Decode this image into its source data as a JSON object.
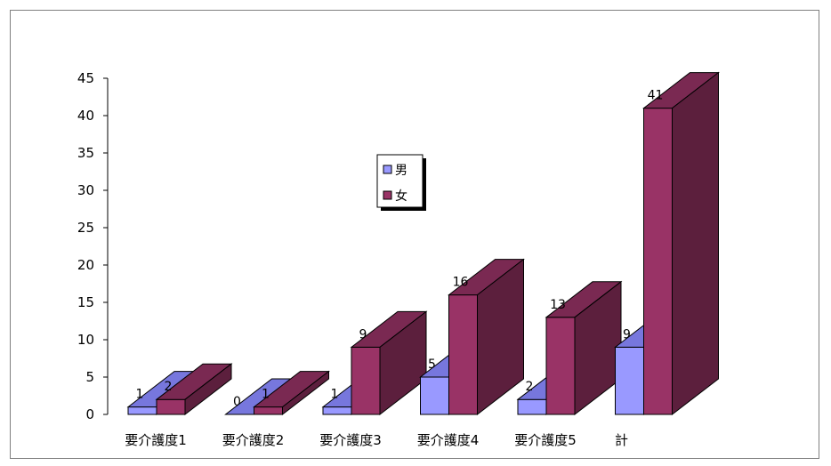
{
  "chart_data": {
    "type": "bar",
    "three_d": true,
    "categories": [
      "要介護度1",
      "要介護度2",
      "要介護度3",
      "要介護度4",
      "要介護度5",
      "計"
    ],
    "series": [
      {
        "name": "男",
        "values": [
          1,
          0,
          1,
          5,
          2,
          9
        ],
        "color": "#9999FF",
        "side_color": "#6666CC",
        "top_color": "#7777DD"
      },
      {
        "name": "女",
        "values": [
          2,
          1,
          9,
          16,
          13,
          41
        ],
        "color": "#993366",
        "side_color": "#5C1F3D",
        "top_color": "#7A2952"
      }
    ],
    "ylim": [
      0,
      45
    ],
    "yticks": [
      0,
      5,
      10,
      15,
      20,
      25,
      30,
      35,
      40,
      45
    ],
    "data_labels": true,
    "legend_position": "center",
    "grid": false
  }
}
